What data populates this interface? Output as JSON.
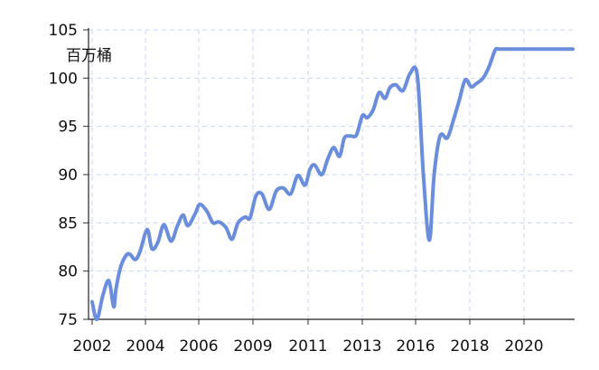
{
  "chart_data": {
    "type": "line",
    "unit_label": "百万桶",
    "ylim": [
      75,
      105
    ],
    "y_ticks": [
      75,
      80,
      85,
      90,
      95,
      100,
      105
    ],
    "x_tick_labels": [
      "2002",
      "2004",
      "2006",
      "2009",
      "2011",
      "2013",
      "2016",
      "2018",
      "2020"
    ],
    "grid": true,
    "line_color": "#6a8edc",
    "grid_color": "#c9d6f0",
    "series": [
      {
        "x": [
          2002.0,
          2002.2,
          2002.45,
          2002.7,
          2002.9,
          2003.0,
          2003.2,
          2003.5,
          2003.8,
          2004.0,
          2004.3,
          2004.5,
          2004.75,
          2005.0,
          2005.3,
          2005.55,
          2005.8,
          2006.0,
          2006.3,
          2006.5,
          2006.8,
          2007.05,
          2007.3,
          2007.6,
          2007.85,
          2008.1,
          2008.4,
          2008.6,
          2008.85,
          2009.1,
          2009.4,
          2009.7,
          2010.0,
          2010.3,
          2010.6,
          2010.9,
          2011.1,
          2011.3,
          2011.6,
          2011.85,
          2012.1,
          2012.35,
          2012.55,
          2012.8,
          2013.05,
          2013.3,
          2013.5,
          2013.75,
          2014.0,
          2014.25,
          2014.45,
          2014.7,
          2015.0,
          2015.3,
          2015.6,
          2015.85,
          2016.1,
          2016.3,
          2016.55,
          2016.85,
          2017.1,
          2017.35,
          2017.6,
          2017.85,
          2018.05,
          2018.35,
          2018.6,
          2018.85,
          2019.0,
          2019.2,
          2019.35,
          2019.5,
          2019.7,
          2019.85,
          2020.0,
          2020.15,
          2020.35,
          2020.55,
          2020.75,
          2020.95,
          2021.1,
          2021.3,
          2021.55,
          2021.8,
          2022.1
        ],
        "values": [
          76.8,
          75.0,
          77.5,
          79.0,
          76.3,
          78.2,
          80.5,
          81.8,
          81.2,
          82.0,
          84.3,
          82.3,
          83.0,
          84.8,
          83.1,
          84.6,
          85.8,
          84.7,
          85.9,
          86.9,
          86.2,
          85.0,
          85.1,
          84.5,
          83.3,
          85.0,
          85.6,
          85.5,
          87.8,
          88.0,
          86.4,
          88.3,
          88.6,
          88.0,
          89.9,
          88.9,
          90.5,
          91.0,
          90.0,
          91.6,
          92.8,
          91.9,
          93.8,
          94.0,
          94.1,
          96.1,
          95.9,
          96.7,
          98.5,
          97.9,
          99.0,
          99.3,
          98.7,
          100.5,
          100.2,
          90.0,
          83.2,
          90.0,
          94.0,
          93.8,
          95.6,
          97.7,
          99.8,
          99.1,
          99.4,
          100.0,
          101.2,
          102.9,
          103.0,
          103.0,
          103.0,
          103.0,
          103.0,
          103.0,
          103.0,
          103.0,
          103.0,
          103.0,
          103.0,
          103.0,
          103.0,
          103.0,
          103.0,
          103.0,
          103.0
        ]
      }
    ]
  }
}
